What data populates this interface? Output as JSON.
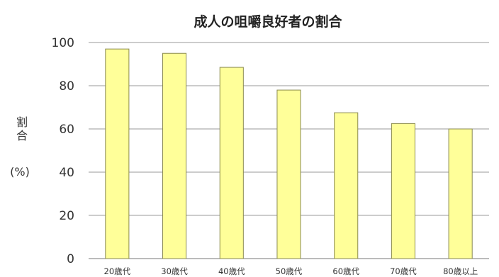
{
  "chart_data": {
    "type": "bar",
    "title": "成人の咀嚼良好者の割合",
    "xlabel": "",
    "ylabel_chars": [
      "割",
      "合"
    ],
    "ylabel_unit": "(%)",
    "categories": [
      "20歳代",
      "30歳代",
      "40歳代",
      "50歳代",
      "60歳代",
      "70歳代",
      "80歳以上"
    ],
    "values": [
      97,
      95,
      88.5,
      78,
      67.5,
      62.5,
      60
    ],
    "ylim": [
      0,
      100
    ],
    "yticks": [
      0,
      20,
      40,
      60,
      80,
      100
    ],
    "grid": true,
    "legend": "none",
    "colors": {
      "bar_fill": "#ffff99",
      "bar_stroke": "#8a8a50",
      "grid": "#9a9a9a",
      "axis": "#777777"
    }
  }
}
